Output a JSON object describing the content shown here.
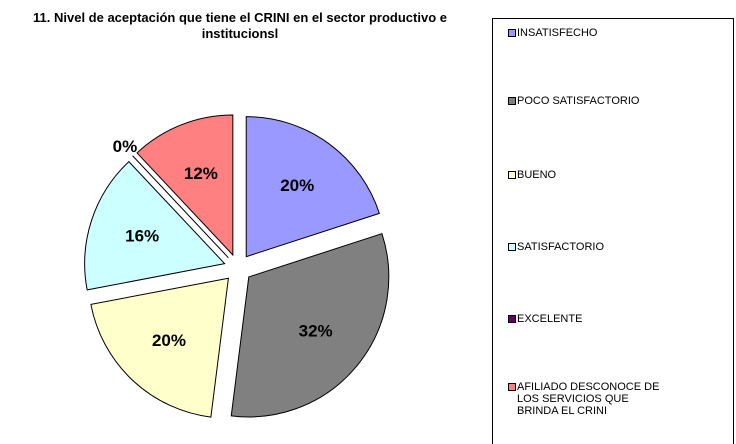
{
  "chart_data": {
    "type": "pie",
    "title": "11. Nivel de aceptación que tiene el CRINI en el sector productivo e institucionsl",
    "categories": [
      "INSATISFECHO",
      "POCO SATISFACTORIO",
      "BUENO",
      "SATISFACTORIO",
      "EXCELENTE",
      "AFILIADO DESCONOCE DE LOS SERVICIOS QUE BRINDA EL CRINI"
    ],
    "values": [
      20,
      32,
      20,
      16,
      0,
      12
    ],
    "value_labels": [
      "20%",
      "32%",
      "20%",
      "16%",
      "0%",
      "12%"
    ],
    "colors": [
      "#9999ff",
      "#808080",
      "#ffffcc",
      "#ccffff",
      "#660066",
      "#ff8080"
    ],
    "legend": "right"
  }
}
